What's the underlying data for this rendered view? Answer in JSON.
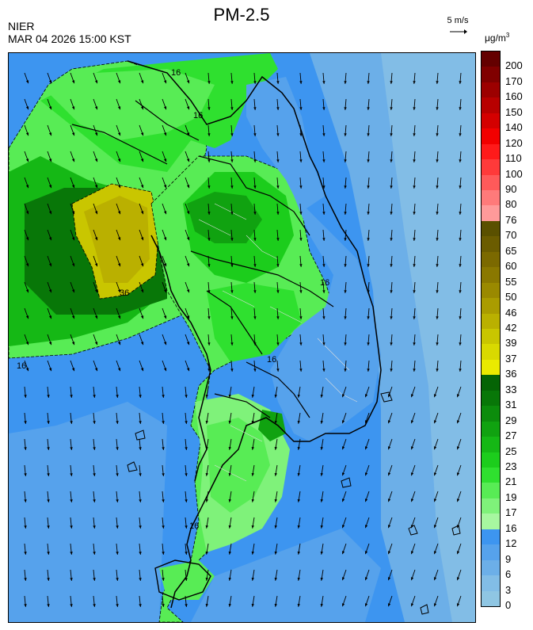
{
  "header": {
    "org": "NIER",
    "datetime": "MAR 04 2026 15:00 KST",
    "title": "PM-2.5"
  },
  "wind_reference": {
    "label": "5 m/s",
    "speed_ms": 5
  },
  "colorbar": {
    "unit_main": "μg/m",
    "unit_sup": "3",
    "bins": [
      {
        "label": "0",
        "color": "#8fc6e3"
      },
      {
        "label": "3",
        "color": "#82bde6"
      },
      {
        "label": "6",
        "color": "#6cafe8"
      },
      {
        "label": "9",
        "color": "#56a2ec"
      },
      {
        "label": "12",
        "color": "#3d95f0"
      },
      {
        "label": "16",
        "color": "#a7f7a0"
      },
      {
        "label": "17",
        "color": "#7ff27a"
      },
      {
        "label": "19",
        "color": "#58ec55"
      },
      {
        "label": "21",
        "color": "#2fe02f"
      },
      {
        "label": "23",
        "color": "#1ccd1c"
      },
      {
        "label": "25",
        "color": "#15b815"
      },
      {
        "label": "27",
        "color": "#10a210"
      },
      {
        "label": "29",
        "color": "#0c8c0c"
      },
      {
        "label": "31",
        "color": "#087708"
      },
      {
        "label": "33",
        "color": "#056405"
      },
      {
        "label": "36",
        "color": "#eaea00"
      },
      {
        "label": "37",
        "color": "#d9d900"
      },
      {
        "label": "39",
        "color": "#c9c600"
      },
      {
        "label": "42",
        "color": "#bab000"
      },
      {
        "label": "46",
        "color": "#aa9c00"
      },
      {
        "label": "50",
        "color": "#9a8900"
      },
      {
        "label": "55",
        "color": "#8a7800"
      },
      {
        "label": "60",
        "color": "#7b6900"
      },
      {
        "label": "65",
        "color": "#6b5c00"
      },
      {
        "label": "70",
        "color": "#5a5000"
      },
      {
        "label": "76",
        "color": "#ff9a9a"
      },
      {
        "label": "80",
        "color": "#ff7a7a"
      },
      {
        "label": "90",
        "color": "#ff5a5a"
      },
      {
        "label": "100",
        "color": "#ff3a3a"
      },
      {
        "label": "110",
        "color": "#ff1a1a"
      },
      {
        "label": "120",
        "color": "#f20000"
      },
      {
        "label": "140",
        "color": "#d40000"
      },
      {
        "label": "150",
        "color": "#b80000"
      },
      {
        "label": "160",
        "color": "#9c0000"
      },
      {
        "label": "170",
        "color": "#800000"
      },
      {
        "label": "200",
        "color": "#640000"
      }
    ]
  },
  "map": {
    "ocean_color": "#3d95f0",
    "contour_labels": [
      "16",
      "36",
      "16",
      "16",
      "16",
      "16",
      "16"
    ]
  }
}
